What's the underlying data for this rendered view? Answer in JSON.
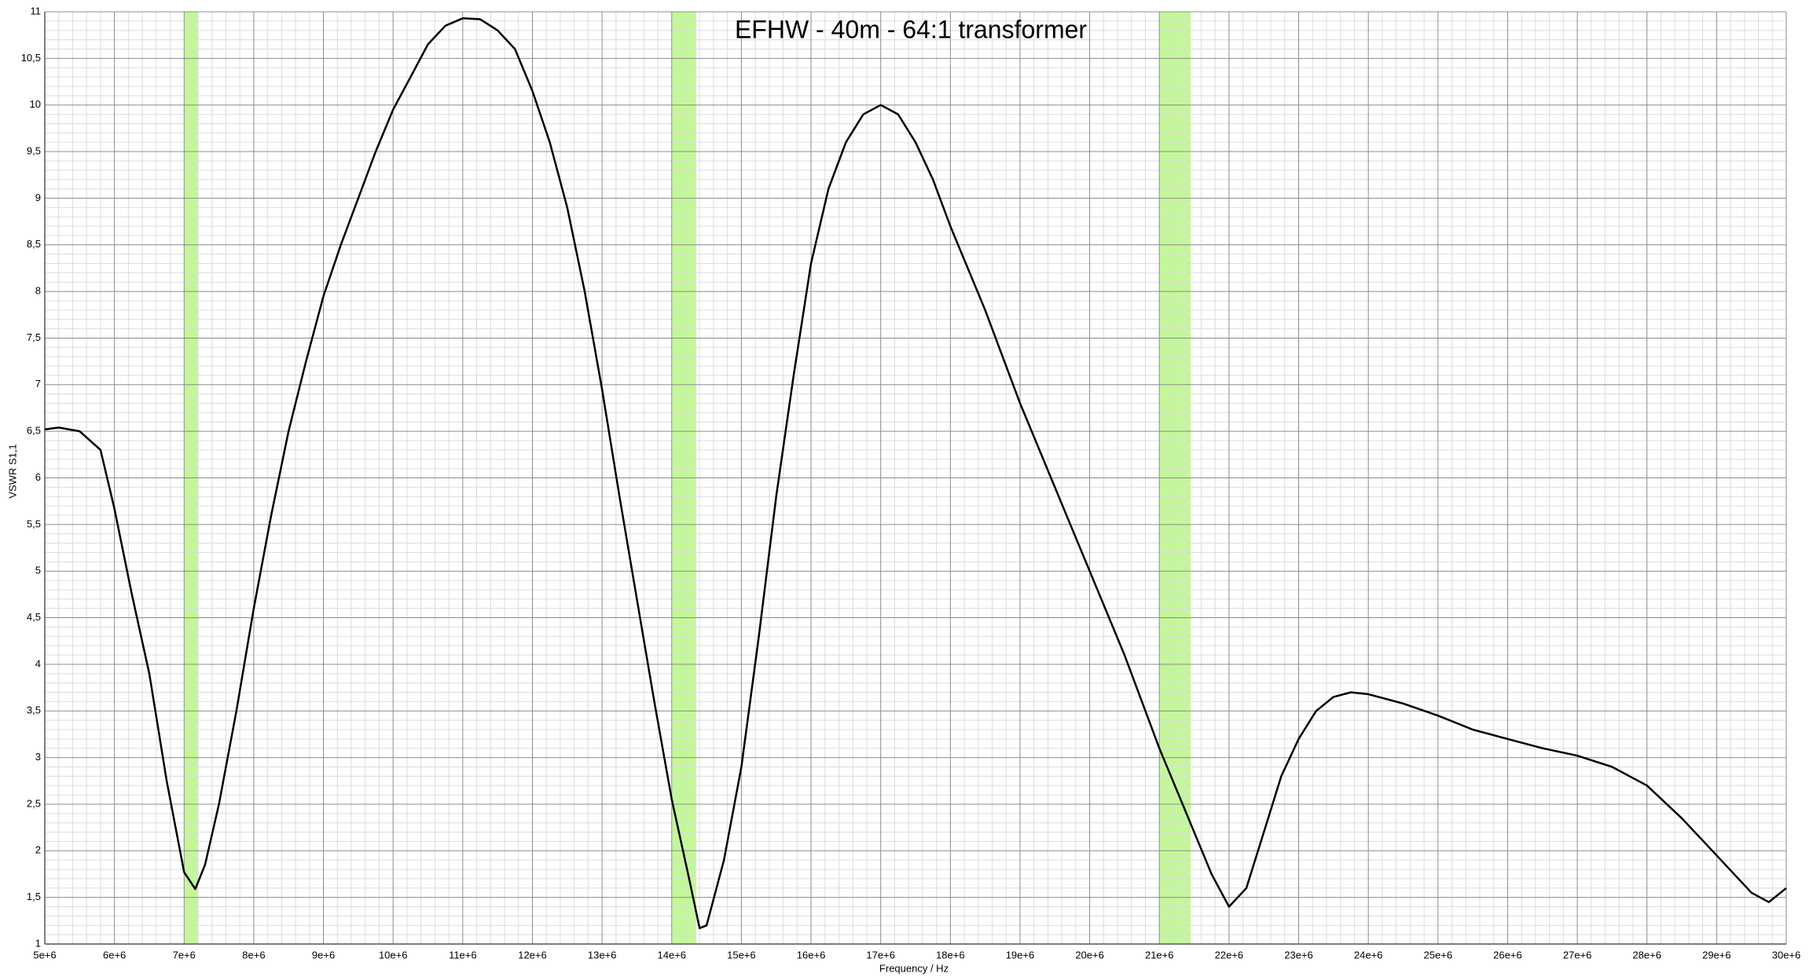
{
  "chart_data": {
    "type": "line",
    "title": "EFHW - 40m - 64:1 transformer",
    "xlabel": "Frequency / Hz",
    "ylabel": "VSWR S1,1",
    "color": "#000000",
    "band_color": "#c4f79a",
    "grid": true,
    "x": [
      5000000,
      5200000,
      5500000,
      5800000,
      6000000,
      6250000,
      6500000,
      6750000,
      7000000,
      7160000,
      7300000,
      7500000,
      7750000,
      8000000,
      8250000,
      8500000,
      8750000,
      9000000,
      9250000,
      9500000,
      9750000,
      10000000,
      10250000,
      10500000,
      10750000,
      11000000,
      11250000,
      11500000,
      11750000,
      12000000,
      12250000,
      12500000,
      12750000,
      13000000,
      13250000,
      13500000,
      13750000,
      14000000,
      14250000,
      14400000,
      14500000,
      14750000,
      15000000,
      15250000,
      15500000,
      15750000,
      16000000,
      16250000,
      16500000,
      16750000,
      17000000,
      17250000,
      17500000,
      17750000,
      18000000,
      18500000,
      19000000,
      19500000,
      20000000,
      20500000,
      21000000,
      21500000,
      21750000,
      22000000,
      22250000,
      22500000,
      22750000,
      23000000,
      23250000,
      23500000,
      23750000,
      24000000,
      24500000,
      25000000,
      25500000,
      26000000,
      26500000,
      27000000,
      27500000,
      28000000,
      28500000,
      29000000,
      29500000,
      29750000,
      30000000
    ],
    "values": [
      6.52,
      6.54,
      6.5,
      6.3,
      5.67,
      4.75,
      3.9,
      2.75,
      1.77,
      1.59,
      1.85,
      2.5,
      3.5,
      4.6,
      5.6,
      6.5,
      7.25,
      7.95,
      8.5,
      9.0,
      9.5,
      9.95,
      10.3,
      10.65,
      10.85,
      10.93,
      10.92,
      10.8,
      10.6,
      10.15,
      9.6,
      8.9,
      8.0,
      6.95,
      5.8,
      4.7,
      3.6,
      2.55,
      1.7,
      1.17,
      1.2,
      1.9,
      2.9,
      4.3,
      5.8,
      7.1,
      8.3,
      9.1,
      9.6,
      9.9,
      10.0,
      9.9,
      9.6,
      9.2,
      8.7,
      7.8,
      6.8,
      5.9,
      5.0,
      4.1,
      3.1,
      2.2,
      1.75,
      1.4,
      1.6,
      2.2,
      2.8,
      3.2,
      3.5,
      3.65,
      3.7,
      3.68,
      3.58,
      3.45,
      3.3,
      3.2,
      3.1,
      3.02,
      2.9,
      2.7,
      2.35,
      1.95,
      1.55,
      1.45,
      1.6
    ],
    "bands": [
      {
        "from": 7000000,
        "to": 7200000
      },
      {
        "from": 14000000,
        "to": 14350000
      },
      {
        "from": 21000000,
        "to": 21450000
      }
    ],
    "xlim": [
      5000000,
      30000000
    ],
    "ylim": [
      1,
      11
    ],
    "xticks": [
      {
        "value": 5000000,
        "label": "5e+6"
      },
      {
        "value": 6000000,
        "label": "6e+6"
      },
      {
        "value": 7000000,
        "label": "7e+6"
      },
      {
        "value": 8000000,
        "label": "8e+6"
      },
      {
        "value": 9000000,
        "label": "9e+6"
      },
      {
        "value": 10000000,
        "label": "10e+6"
      },
      {
        "value": 11000000,
        "label": "11e+6"
      },
      {
        "value": 12000000,
        "label": "12e+6"
      },
      {
        "value": 13000000,
        "label": "13e+6"
      },
      {
        "value": 14000000,
        "label": "14e+6"
      },
      {
        "value": 15000000,
        "label": "15e+6"
      },
      {
        "value": 16000000,
        "label": "16e+6"
      },
      {
        "value": 17000000,
        "label": "17e+6"
      },
      {
        "value": 18000000,
        "label": "18e+6"
      },
      {
        "value": 19000000,
        "label": "19e+6"
      },
      {
        "value": 20000000,
        "label": "20e+6"
      },
      {
        "value": 21000000,
        "label": "21e+6"
      },
      {
        "value": 22000000,
        "label": "22e+6"
      },
      {
        "value": 23000000,
        "label": "23e+6"
      },
      {
        "value": 24000000,
        "label": "24e+6"
      },
      {
        "value": 25000000,
        "label": "25e+6"
      },
      {
        "value": 26000000,
        "label": "26e+6"
      },
      {
        "value": 27000000,
        "label": "27e+6"
      },
      {
        "value": 28000000,
        "label": "28e+6"
      },
      {
        "value": 29000000,
        "label": "29e+6"
      },
      {
        "value": 30000000,
        "label": "30e+6"
      }
    ],
    "yticks": [
      1,
      {
        "value": 1.5,
        "label": "1,5"
      },
      2,
      {
        "value": 2.5,
        "label": "2,5"
      },
      3,
      {
        "value": 3.5,
        "label": "3,5"
      },
      4,
      {
        "value": 4.5,
        "label": "4,5"
      },
      5,
      {
        "value": 5.5,
        "label": "5,5"
      },
      6,
      {
        "value": 6.5,
        "label": "6,5"
      },
      7,
      {
        "value": 7.5,
        "label": "7,5"
      },
      8,
      {
        "value": 8.5,
        "label": "8,5"
      },
      9,
      {
        "value": 9.5,
        "label": "9,5"
      },
      10,
      {
        "value": 10.5,
        "label": "10,5"
      },
      11
    ]
  }
}
